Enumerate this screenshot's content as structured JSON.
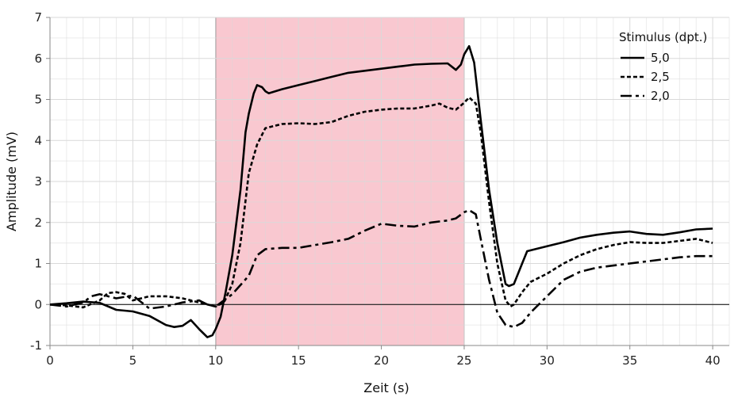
{
  "chart_data": {
    "type": "line",
    "xlabel": "Zeit (s)",
    "ylabel": "Amplitude (mV)",
    "xlim": [
      0,
      41
    ],
    "ylim": [
      -1,
      7
    ],
    "xticks": [
      0,
      5,
      10,
      15,
      20,
      25,
      30,
      35,
      40
    ],
    "yticks": [
      -1,
      0,
      1,
      2,
      3,
      4,
      5,
      6,
      7
    ],
    "grid": true,
    "highlight": {
      "x_start": 10,
      "x_end": 25,
      "color": "#f9c8d0"
    },
    "legend": {
      "title": "Stimulus (dpt.)",
      "position": "top-right"
    },
    "series": [
      {
        "name": "5,0",
        "dash": "solid",
        "points": [
          [
            0,
            0
          ],
          [
            1,
            0.03
          ],
          [
            2,
            0.07
          ],
          [
            3,
            0.04
          ],
          [
            4,
            -0.13
          ],
          [
            5,
            -0.17
          ],
          [
            6,
            -0.28
          ],
          [
            7,
            -0.5
          ],
          [
            7.5,
            -0.55
          ],
          [
            8,
            -0.52
          ],
          [
            8.5,
            -0.38
          ],
          [
            9,
            -0.6
          ],
          [
            9.5,
            -0.8
          ],
          [
            9.8,
            -0.75
          ],
          [
            10,
            -0.6
          ],
          [
            10.3,
            -0.3
          ],
          [
            10.6,
            0.3
          ],
          [
            11,
            1.2
          ],
          [
            11.5,
            2.8
          ],
          [
            11.8,
            4.2
          ],
          [
            12,
            4.65
          ],
          [
            12.3,
            5.15
          ],
          [
            12.5,
            5.35
          ],
          [
            12.8,
            5.3
          ],
          [
            13,
            5.2
          ],
          [
            13.2,
            5.15
          ],
          [
            14,
            5.25
          ],
          [
            15,
            5.35
          ],
          [
            16,
            5.45
          ],
          [
            17,
            5.55
          ],
          [
            18,
            5.65
          ],
          [
            19,
            5.7
          ],
          [
            20,
            5.75
          ],
          [
            21,
            5.8
          ],
          [
            22,
            5.85
          ],
          [
            23,
            5.87
          ],
          [
            24,
            5.88
          ],
          [
            24.5,
            5.72
          ],
          [
            24.8,
            5.85
          ],
          [
            25,
            6.1
          ],
          [
            25.3,
            6.3
          ],
          [
            25.6,
            5.9
          ],
          [
            26,
            4.5
          ],
          [
            26.5,
            2.8
          ],
          [
            27,
            1.5
          ],
          [
            27.5,
            0.5
          ],
          [
            27.7,
            0.45
          ],
          [
            28,
            0.5
          ],
          [
            28.5,
            1.0
          ],
          [
            28.8,
            1.3
          ],
          [
            29.3,
            1.35
          ],
          [
            30,
            1.42
          ],
          [
            31,
            1.52
          ],
          [
            32,
            1.63
          ],
          [
            33,
            1.7
          ],
          [
            34,
            1.75
          ],
          [
            35,
            1.78
          ],
          [
            36,
            1.72
          ],
          [
            37,
            1.7
          ],
          [
            38,
            1.76
          ],
          [
            39,
            1.83
          ],
          [
            40,
            1.85
          ]
        ]
      },
      {
        "name": "2,5",
        "dash": "dotted",
        "points": [
          [
            0,
            0
          ],
          [
            1,
            -0.02
          ],
          [
            2,
            -0.07
          ],
          [
            3,
            0.1
          ],
          [
            3.5,
            0.28
          ],
          [
            4,
            0.3
          ],
          [
            4.5,
            0.26
          ],
          [
            5,
            0.1
          ],
          [
            6,
            0.2
          ],
          [
            7,
            0.2
          ],
          [
            8,
            0.15
          ],
          [
            9,
            0.05
          ],
          [
            10,
            -0.05
          ],
          [
            10.5,
            0.05
          ],
          [
            11,
            0.5
          ],
          [
            11.5,
            1.5
          ],
          [
            12,
            3.2
          ],
          [
            12.5,
            3.9
          ],
          [
            13,
            4.3
          ],
          [
            14,
            4.4
          ],
          [
            15,
            4.42
          ],
          [
            16,
            4.4
          ],
          [
            17,
            4.45
          ],
          [
            18,
            4.6
          ],
          [
            19,
            4.7
          ],
          [
            20,
            4.75
          ],
          [
            21,
            4.78
          ],
          [
            22,
            4.78
          ],
          [
            23,
            4.85
          ],
          [
            23.5,
            4.9
          ],
          [
            24,
            4.8
          ],
          [
            24.5,
            4.75
          ],
          [
            25,
            4.92
          ],
          [
            25.3,
            5.05
          ],
          [
            25.7,
            4.9
          ],
          [
            26,
            4.2
          ],
          [
            26.5,
            2.5
          ],
          [
            27,
            1.0
          ],
          [
            27.5,
            0.1
          ],
          [
            27.8,
            -0.05
          ],
          [
            28,
            0.0
          ],
          [
            28.5,
            0.3
          ],
          [
            29,
            0.55
          ],
          [
            30,
            0.75
          ],
          [
            31,
            1.0
          ],
          [
            32,
            1.2
          ],
          [
            33,
            1.35
          ],
          [
            34,
            1.45
          ],
          [
            35,
            1.52
          ],
          [
            36,
            1.5
          ],
          [
            37,
            1.5
          ],
          [
            38,
            1.55
          ],
          [
            39,
            1.6
          ],
          [
            40,
            1.5
          ]
        ]
      },
      {
        "name": "2,0",
        "dash": "dashed",
        "points": [
          [
            0,
            0
          ],
          [
            1,
            -0.05
          ],
          [
            2,
            0.05
          ],
          [
            2.5,
            0.2
          ],
          [
            3,
            0.25
          ],
          [
            3.5,
            0.2
          ],
          [
            4,
            0.15
          ],
          [
            5,
            0.22
          ],
          [
            6,
            -0.1
          ],
          [
            7,
            -0.05
          ],
          [
            8,
            0.05
          ],
          [
            9,
            0.1
          ],
          [
            9.5,
            0.0
          ],
          [
            10,
            -0.05
          ],
          [
            10.5,
            0.1
          ],
          [
            11,
            0.25
          ],
          [
            12,
            0.7
          ],
          [
            12.5,
            1.2
          ],
          [
            13,
            1.35
          ],
          [
            14,
            1.38
          ],
          [
            15,
            1.38
          ],
          [
            16,
            1.45
          ],
          [
            17,
            1.52
          ],
          [
            18,
            1.6
          ],
          [
            19,
            1.8
          ],
          [
            20,
            1.97
          ],
          [
            21,
            1.92
          ],
          [
            22,
            1.9
          ],
          [
            23,
            2.0
          ],
          [
            24,
            2.05
          ],
          [
            24.5,
            2.1
          ],
          [
            25,
            2.25
          ],
          [
            25.3,
            2.3
          ],
          [
            25.7,
            2.2
          ],
          [
            26,
            1.6
          ],
          [
            26.5,
            0.6
          ],
          [
            27,
            -0.2
          ],
          [
            27.5,
            -0.5
          ],
          [
            28,
            -0.55
          ],
          [
            28.5,
            -0.45
          ],
          [
            29,
            -0.2
          ],
          [
            30,
            0.2
          ],
          [
            31,
            0.6
          ],
          [
            32,
            0.8
          ],
          [
            33,
            0.9
          ],
          [
            34,
            0.95
          ],
          [
            35,
            1.0
          ],
          [
            36,
            1.05
          ],
          [
            37,
            1.1
          ],
          [
            38,
            1.15
          ],
          [
            39,
            1.18
          ],
          [
            40,
            1.18
          ]
        ]
      }
    ]
  }
}
